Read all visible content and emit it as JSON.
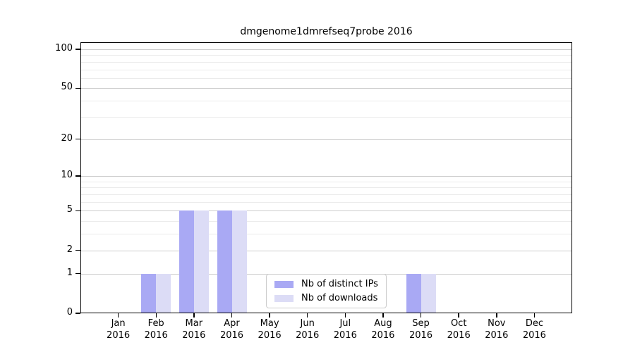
{
  "chart_data": {
    "type": "bar",
    "title": "dmgenome1dmrefseq7probe 2016",
    "categories": [
      "Jan 2016",
      "Feb 2016",
      "Mar 2016",
      "Apr 2016",
      "May 2016",
      "Jun 2016",
      "Jul 2016",
      "Aug 2016",
      "Sep 2016",
      "Oct 2016",
      "Nov 2016",
      "Dec 2016"
    ],
    "series": [
      {
        "name": "Nb of distinct IPs",
        "color": "#a9a9f4",
        "values": [
          0,
          1,
          5,
          5,
          0,
          0,
          0,
          0,
          1,
          0,
          0,
          0
        ]
      },
      {
        "name": "Nb of downloads",
        "color": "#dcdcf6",
        "values": [
          0,
          1,
          5,
          5,
          0,
          0,
          0,
          0,
          1,
          0,
          0,
          0
        ]
      }
    ],
    "xlabel": "",
    "ylabel": "",
    "yscale": "log1p",
    "ylim": [
      0,
      113
    ],
    "yticks": [
      0,
      1,
      2,
      5,
      10,
      20,
      50,
      100
    ],
    "minor_gridlines": [
      3,
      4,
      6,
      7,
      8,
      9,
      30,
      40,
      60,
      70,
      80,
      90
    ],
    "grid": "horizontal",
    "legend_position": "lower-center",
    "colors": {
      "major_grid": "#cccccc",
      "minor_grid": "#ebebeb",
      "axis": "#000000",
      "background": "#ffffff"
    }
  }
}
